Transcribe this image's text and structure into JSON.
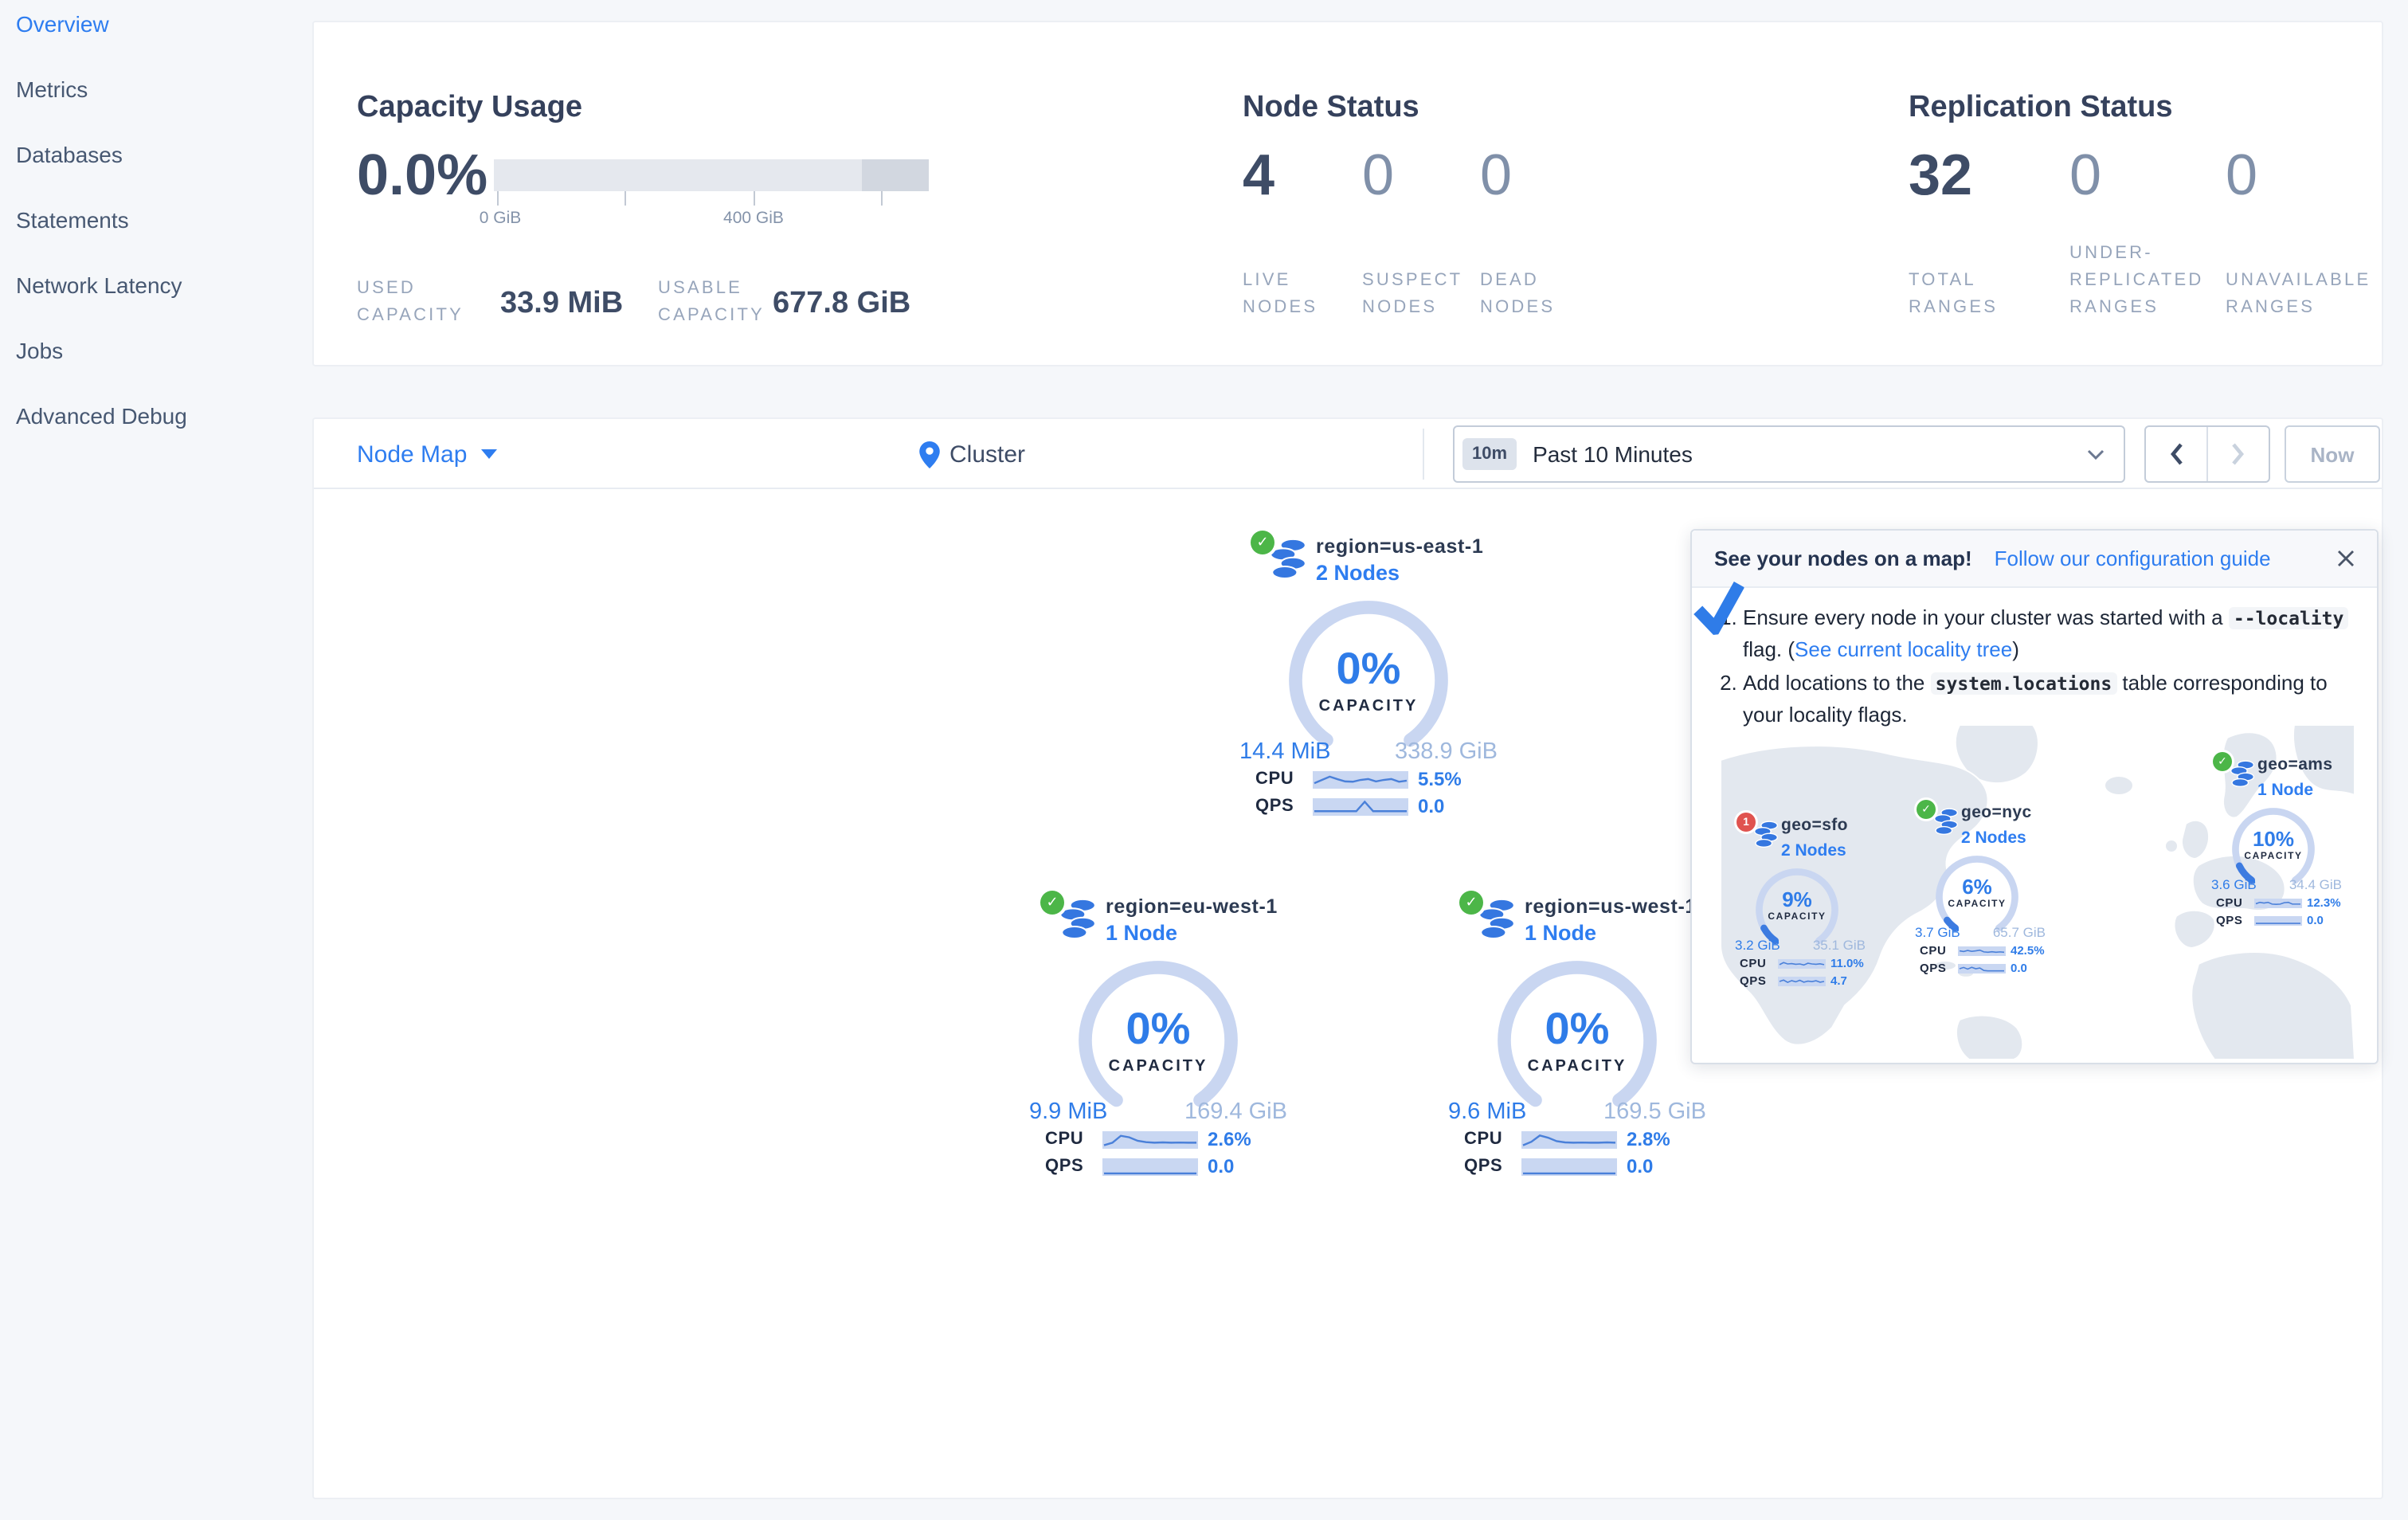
{
  "icons": {
    "check": "✓"
  },
  "colors": {
    "accent_blue": "#2e7df0",
    "gauge_blue": "#2f7ce8",
    "ring_light": "#c9d6f1",
    "green_ok": "#4cb648",
    "red_error": "#e0534f",
    "dark_slate": "#3e4c66",
    "page_bg": "#f5f7fa"
  },
  "sidebar": {
    "items": [
      {
        "label": "Overview",
        "active": true
      },
      {
        "label": "Metrics",
        "active": false
      },
      {
        "label": "Databases",
        "active": false
      },
      {
        "label": "Statements",
        "active": false
      },
      {
        "label": "Network Latency",
        "active": false
      },
      {
        "label": "Jobs",
        "active": false
      },
      {
        "label": "Advanced Debug",
        "active": false
      }
    ]
  },
  "summary": {
    "capacity": {
      "title": "Capacity Usage",
      "percent": "0.0%",
      "tick_labels": [
        "0 GiB",
        "400 GiB"
      ],
      "used_label": "USED CAPACITY",
      "used_value": "33.9 MiB",
      "usable_label": "USABLE CAPACITY",
      "usable_value": "677.8 GiB"
    },
    "node_status": {
      "title": "Node Status",
      "stats": [
        {
          "value": "4",
          "label": "LIVE NODES"
        },
        {
          "value": "0",
          "label": "SUSPECT NODES"
        },
        {
          "value": "0",
          "label": "DEAD NODES"
        }
      ]
    },
    "replication": {
      "title": "Replication Status",
      "stats": [
        {
          "value": "32",
          "label": "TOTAL RANGES"
        },
        {
          "value": "0",
          "label": "UNDER-REPLICATED RANGES"
        },
        {
          "value": "0",
          "label": "UNAVAILABLE RANGES"
        }
      ]
    }
  },
  "toolbar": {
    "view_label": "Node Map",
    "breadcrumb": "Cluster",
    "time_badge": "10m",
    "time_label": "Past 10 Minutes",
    "now_label": "Now"
  },
  "labels": {
    "cpu": "CPU",
    "qps": "QPS",
    "capacity": "CAPACITY"
  },
  "regions": [
    {
      "name": "region=us-east-1",
      "nodes": "2 Nodes",
      "capacity_pct": "0%",
      "capacity_pct_value": 0,
      "used": "14.4 MiB",
      "total": "338.9 GiB",
      "cpu": "5.5%",
      "qps": "0.0",
      "cpu_spark": [
        0.72,
        0.5,
        0.28,
        0.45,
        0.6,
        0.62,
        0.5,
        0.44,
        0.6,
        0.5,
        0.44,
        0.62,
        0.55
      ],
      "qps_spark": [
        0.78,
        0.78,
        0.78,
        0.78,
        0.78,
        0.78,
        0.15,
        0.78,
        0.78,
        0.78,
        0.78,
        0.78
      ]
    },
    {
      "name": "region=eu-west-1",
      "nodes": "1 Node",
      "capacity_pct": "0%",
      "capacity_pct_value": 0,
      "used": "9.9 MiB",
      "total": "169.4 GiB",
      "cpu": "2.6%",
      "qps": "0.0",
      "cpu_spark": [
        0.85,
        0.68,
        0.22,
        0.32,
        0.55,
        0.64,
        0.68,
        0.66,
        0.68,
        0.67,
        0.68,
        0.68
      ],
      "qps_spark": [
        0.92,
        0.92,
        0.92,
        0.92,
        0.92,
        0.92,
        0.92,
        0.92,
        0.92,
        0.92,
        0.92,
        0.92
      ]
    },
    {
      "name": "region=us-west-1",
      "nodes": "1 Node",
      "capacity_pct": "0%",
      "capacity_pct_value": 0,
      "used": "9.6 MiB",
      "total": "169.5 GiB",
      "cpu": "2.8%",
      "qps": "0.0",
      "cpu_spark": [
        0.85,
        0.62,
        0.2,
        0.35,
        0.58,
        0.66,
        0.68,
        0.67,
        0.68,
        0.68,
        0.66,
        0.68
      ],
      "qps_spark": [
        0.92,
        0.92,
        0.92,
        0.92,
        0.92,
        0.92,
        0.92,
        0.92,
        0.92,
        0.92,
        0.92,
        0.92
      ]
    }
  ],
  "tooltip": {
    "title": "See your nodes on a map!",
    "link": "Follow our configuration guide",
    "steps": [
      {
        "prefix": "Ensure every node in your cluster was started with a ",
        "code": "--locality",
        "middle": " flag. (",
        "link": "See current locality tree",
        "suffix": ")"
      },
      {
        "prefix": "Add locations to the ",
        "code": "system.locations",
        "middle": " table corresponding to your locality flags.",
        "link": "",
        "suffix": ""
      }
    ],
    "map_regions": [
      {
        "name": "geo=sfo",
        "nodes": "2 Nodes",
        "status": "error",
        "badge": "1",
        "pct": "9%",
        "pct_value": 9,
        "used": "3.2 GiB",
        "total": "35.1 GiB",
        "cpu": "11.0%",
        "qps": "4.7",
        "cpu_spark": [
          0.6,
          0.3,
          0.5,
          0.45,
          0.55,
          0.5,
          0.65,
          0.4,
          0.5,
          0.55,
          0.48,
          0.6
        ],
        "qps_spark": [
          0.5,
          0.3,
          0.62,
          0.38,
          0.55,
          0.33,
          0.6,
          0.45,
          0.52,
          0.4,
          0.6,
          0.5
        ]
      },
      {
        "name": "geo=nyc",
        "nodes": "2 Nodes",
        "status": "ok",
        "badge": "",
        "pct": "6%",
        "pct_value": 6,
        "used": "3.7 GiB",
        "total": "65.7 GiB",
        "cpu": "42.5%",
        "qps": "0.0",
        "cpu_spark": [
          0.45,
          0.55,
          0.4,
          0.52,
          0.45,
          0.35,
          0.6,
          0.65,
          0.58,
          0.65,
          0.6,
          0.65
        ],
        "qps_spark": [
          0.5,
          0.32,
          0.55,
          0.3,
          0.5,
          0.4,
          0.75,
          0.8,
          0.8,
          0.8,
          0.8,
          0.8
        ]
      },
      {
        "name": "geo=ams",
        "nodes": "1 Node",
        "status": "ok",
        "badge": "",
        "pct": "10%",
        "pct_value": 10,
        "used": "3.6 GiB",
        "total": "34.4 GiB",
        "cpu": "12.3%",
        "qps": "0.0",
        "cpu_spark": [
          0.55,
          0.35,
          0.45,
          0.35,
          0.6,
          0.63,
          0.6,
          0.4,
          0.35,
          0.6,
          0.6,
          0.6
        ],
        "qps_spark": [
          0.85,
          0.85,
          0.85,
          0.85,
          0.85,
          0.85,
          0.85,
          0.85,
          0.85,
          0.85,
          0.85,
          0.85
        ]
      }
    ]
  }
}
